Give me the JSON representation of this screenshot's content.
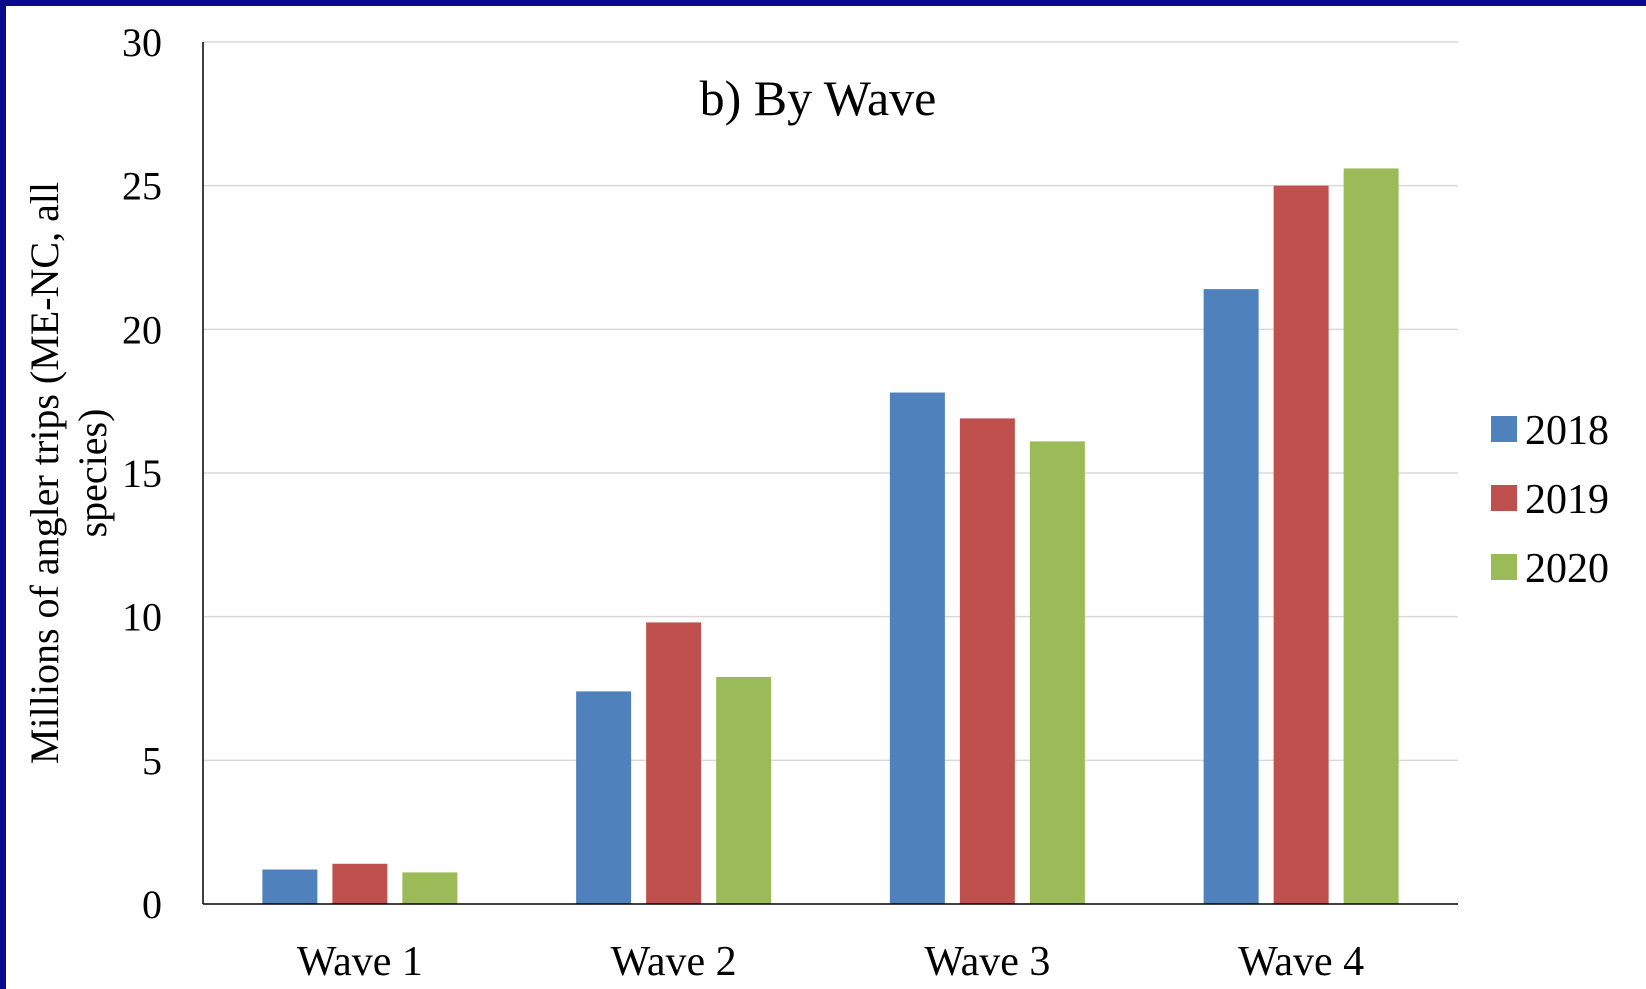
{
  "chart_data": {
    "type": "bar",
    "title": "b) By Wave",
    "xlabel": "",
    "ylabel": "Millions of angler trips (ME-NC, all species)",
    "ylabel_lines": [
      "Millions of angler trips (ME-NC, all",
      "species)"
    ],
    "categories": [
      "Wave 1",
      "Wave 2",
      "Wave 3",
      "Wave 4"
    ],
    "series": [
      {
        "name": "2018",
        "color": "#4f81bd",
        "values": [
          1.2,
          7.4,
          17.8,
          21.4
        ]
      },
      {
        "name": "2019",
        "color": "#c0504d",
        "values": [
          1.4,
          9.8,
          16.9,
          25.0
        ]
      },
      {
        "name": "2020",
        "color": "#9bbb59",
        "values": [
          1.1,
          7.9,
          16.1,
          25.6
        ]
      }
    ],
    "ylim": [
      0,
      30
    ],
    "yticks": [
      "0",
      "5",
      "10",
      "15",
      "20",
      "25",
      "30"
    ],
    "grid": true,
    "legend_position": "right"
  }
}
